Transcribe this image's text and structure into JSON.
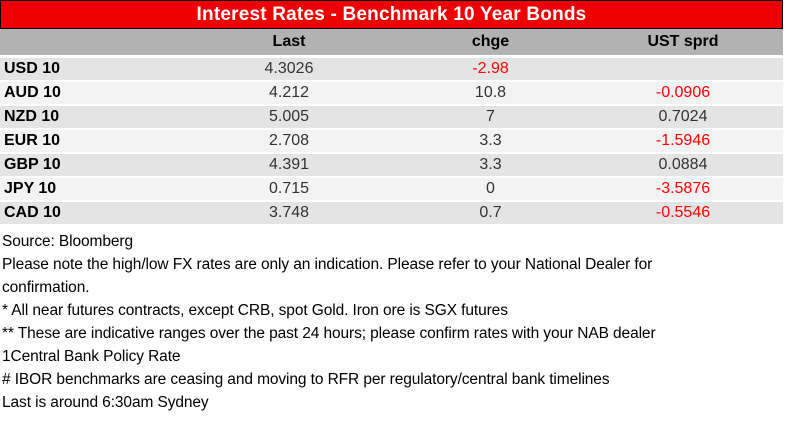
{
  "banner": {
    "title": "Interest Rates - Benchmark 10 Year Bonds"
  },
  "table": {
    "headers": {
      "label": "",
      "last": "Last",
      "chge": "chge",
      "ust_sprd": "UST sprd"
    },
    "rows": [
      {
        "label": "USD 10",
        "last": "4.3026",
        "chge": "-2.98",
        "ust_sprd": ""
      },
      {
        "label": "AUD 10",
        "last": "4.212",
        "chge": "10.8",
        "ust_sprd": "-0.0906"
      },
      {
        "label": "NZD 10",
        "last": "5.005",
        "chge": "7",
        "ust_sprd": "0.7024"
      },
      {
        "label": "EUR 10",
        "last": "2.708",
        "chge": "3.3",
        "ust_sprd": "-1.5946"
      },
      {
        "label": "GBP 10",
        "last": "4.391",
        "chge": "3.3",
        "ust_sprd": "0.0884"
      },
      {
        "label": "JPY 10",
        "last": "0.715",
        "chge": "0",
        "ust_sprd": "-3.5876"
      },
      {
        "label": "CAD 10",
        "last": "3.748",
        "chge": "0.7",
        "ust_sprd": "-0.5546"
      }
    ]
  },
  "footnotes": {
    "lines": [
      "Source: Bloomberg",
      "Please note the high/low FX rates are only an indication. Please refer to your National Dealer for",
      "confirmation.",
      "* All near futures contracts, except CRB, spot Gold. Iron ore is SGX futures",
      "** These are indicative ranges over the past 24 hours; please confirm rates with your NAB dealer",
      "1Central Bank Policy Rate",
      "# IBOR benchmarks are ceasing and moving to RFR per regulatory/central bank timelines",
      "Last is around 6:30am Sydney"
    ]
  },
  "colors": {
    "banner_background": "#ee0000",
    "banner_text": "#ffffff",
    "header_row_background": "#b2b2b2",
    "row_stripe_dark": "#e4e4e4",
    "row_stripe_light": "#f3f3f3",
    "negative_value_text": "#ff0000",
    "value_text": "#333333"
  }
}
